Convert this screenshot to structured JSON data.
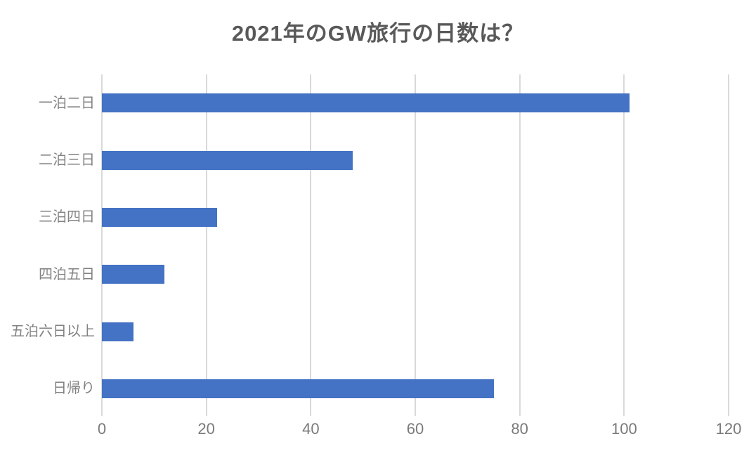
{
  "chart_data": {
    "type": "bar",
    "orientation": "horizontal",
    "title": "2021年のGW旅行の日数は？",
    "categories": [
      "一泊二日",
      "二泊三日",
      "三泊四日",
      "四泊五日",
      "五泊六日以上",
      "日帰り"
    ],
    "values": [
      101,
      48,
      22,
      12,
      6,
      75
    ],
    "xlim": [
      0,
      120
    ],
    "x_ticks": [
      0,
      20,
      40,
      60,
      80,
      100,
      120
    ],
    "grid": true,
    "legend": false,
    "bar_color": "#4472C4",
    "gridline_color": "#D9D9D9",
    "tick_label_color": "#7A7A7A",
    "category_label_color": "#828282",
    "title_color": "#595959"
  }
}
